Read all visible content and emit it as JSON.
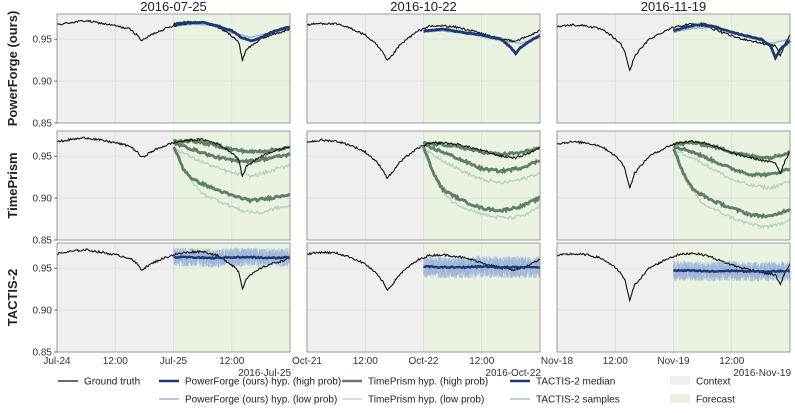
{
  "colors": {
    "ground_truth": "#111111",
    "powerforge_high": "#1b3a73",
    "powerforge_low": "#8fa6cf",
    "timeprism_high": "#5e806b",
    "timeprism_low": "#bcd0c3",
    "tactis_median": "#1b3a73",
    "tactis_samples": "#9db3d8",
    "context": "#efefef",
    "forecast": "#eaf3e1"
  },
  "legend": {
    "ground_truth": "Ground truth",
    "pf_high": "PowerForge (ours) hyp. (high prob)",
    "pf_low": "PowerForge (ours) hyp. (low prob)",
    "tp_high": "TimePrism hyp. (high prob)",
    "tp_low": "TimePrism hyp. (low prob)",
    "tactis_median": "TACTIS-2 median",
    "tactis_samples": "TACTIS-2 samples",
    "context": "Context",
    "forecast": "Forecast"
  },
  "chart_data": {
    "type": "line",
    "columns": [
      "2016-07-25",
      "2016-10-22",
      "2016-11-19"
    ],
    "rows": [
      "PowerForge (ours)",
      "TimePrism",
      "TACTIS-2"
    ],
    "ylim": [
      0.85,
      0.98
    ],
    "yticks": [
      "0.95",
      "0.90",
      "0.85"
    ],
    "yticks_values": [
      0.95,
      0.9,
      0.85
    ],
    "xlim_hours": [
      0,
      48
    ],
    "forecast_start_hour": 24,
    "xtick_hours": [
      0,
      12,
      24,
      36
    ],
    "xtick_labels": [
      [
        "Jul-24",
        "12:00",
        "Jul-25",
        "12:00"
      ],
      [
        "Oct-21",
        "12:00",
        "Oct-22",
        "12:00"
      ],
      [
        "Nov-18",
        "12:00",
        "Nov-19",
        "12:00"
      ]
    ],
    "x_offset_labels": [
      "2016-Jul-25",
      "2016-Oct-22",
      "2016-Nov-19"
    ],
    "ground_truth": [
      [
        [
          0,
          0.967
        ],
        [
          3,
          0.97
        ],
        [
          6,
          0.972
        ],
        [
          9,
          0.969
        ],
        [
          12,
          0.966
        ],
        [
          15,
          0.962
        ],
        [
          16.5,
          0.955
        ],
        [
          17.5,
          0.948
        ],
        [
          18.5,
          0.952
        ],
        [
          20,
          0.957
        ],
        [
          22,
          0.962
        ],
        [
          24,
          0.966
        ],
        [
          27,
          0.969
        ],
        [
          30,
          0.97
        ],
        [
          33,
          0.965
        ],
        [
          35,
          0.958
        ],
        [
          36.5,
          0.952
        ],
        [
          37.5,
          0.945
        ],
        [
          38.2,
          0.925
        ],
        [
          39,
          0.938
        ],
        [
          40,
          0.942
        ],
        [
          42,
          0.95
        ],
        [
          44,
          0.955
        ],
        [
          46,
          0.958
        ],
        [
          48,
          0.962
        ]
      ],
      [
        [
          0,
          0.967
        ],
        [
          3,
          0.969
        ],
        [
          6,
          0.968
        ],
        [
          9,
          0.963
        ],
        [
          12,
          0.955
        ],
        [
          14,
          0.945
        ],
        [
          15.5,
          0.935
        ],
        [
          16.5,
          0.924
        ],
        [
          17.5,
          0.93
        ],
        [
          19,
          0.942
        ],
        [
          21,
          0.952
        ],
        [
          23,
          0.96
        ],
        [
          25,
          0.965
        ],
        [
          28,
          0.966
        ],
        [
          31,
          0.964
        ],
        [
          34,
          0.96
        ],
        [
          37,
          0.955
        ],
        [
          40,
          0.95
        ],
        [
          43,
          0.948
        ],
        [
          45,
          0.952
        ],
        [
          48,
          0.96
        ]
      ],
      [
        [
          0,
          0.965
        ],
        [
          3,
          0.967
        ],
        [
          6,
          0.966
        ],
        [
          9,
          0.962
        ],
        [
          11,
          0.955
        ],
        [
          13,
          0.945
        ],
        [
          14,
          0.935
        ],
        [
          15,
          0.912
        ],
        [
          16,
          0.93
        ],
        [
          17.5,
          0.94
        ],
        [
          19,
          0.95
        ],
        [
          21,
          0.956
        ],
        [
          23,
          0.962
        ],
        [
          25,
          0.966
        ],
        [
          28,
          0.968
        ],
        [
          31,
          0.965
        ],
        [
          34,
          0.958
        ],
        [
          37,
          0.952
        ],
        [
          40,
          0.948
        ],
        [
          43,
          0.944
        ],
        [
          45,
          0.942
        ],
        [
          46,
          0.93
        ],
        [
          47,
          0.945
        ],
        [
          48,
          0.955
        ]
      ]
    ],
    "powerforge_high": [
      [
        [
          24,
          0.968
        ],
        [
          27,
          0.97
        ],
        [
          30,
          0.97
        ],
        [
          33,
          0.966
        ],
        [
          36,
          0.96
        ],
        [
          38,
          0.952
        ],
        [
          40,
          0.948
        ],
        [
          42,
          0.952
        ],
        [
          44,
          0.958
        ],
        [
          48,
          0.965
        ]
      ],
      [
        [
          24,
          0.96
        ],
        [
          28,
          0.962
        ],
        [
          32,
          0.958
        ],
        [
          36,
          0.955
        ],
        [
          40,
          0.95
        ],
        [
          42,
          0.94
        ],
        [
          43,
          0.933
        ],
        [
          44,
          0.94
        ],
        [
          46,
          0.948
        ],
        [
          48,
          0.955
        ]
      ],
      [
        [
          24,
          0.96
        ],
        [
          27,
          0.965
        ],
        [
          30,
          0.968
        ],
        [
          33,
          0.964
        ],
        [
          36,
          0.958
        ],
        [
          39,
          0.954
        ],
        [
          42,
          0.95
        ],
        [
          44,
          0.942
        ],
        [
          45,
          0.928
        ],
        [
          46,
          0.938
        ],
        [
          48,
          0.948
        ]
      ]
    ],
    "powerforge_low": [
      [
        [
          24,
          0.965
        ],
        [
          28,
          0.968
        ],
        [
          32,
          0.966
        ],
        [
          36,
          0.958
        ],
        [
          40,
          0.952
        ],
        [
          44,
          0.958
        ],
        [
          48,
          0.962
        ]
      ],
      [
        [
          24,
          0.958
        ],
        [
          28,
          0.96
        ],
        [
          32,
          0.957
        ],
        [
          36,
          0.953
        ],
        [
          40,
          0.948
        ],
        [
          44,
          0.945
        ],
        [
          48,
          0.952
        ]
      ],
      [
        [
          24,
          0.958
        ],
        [
          28,
          0.963
        ],
        [
          32,
          0.964
        ],
        [
          36,
          0.958
        ],
        [
          40,
          0.951
        ],
        [
          44,
          0.945
        ],
        [
          48,
          0.95
        ]
      ]
    ],
    "timeprism_high": [
      [
        [
          [
            24,
            0.968
          ],
          [
            28,
            0.968
          ],
          [
            32,
            0.964
          ],
          [
            36,
            0.958
          ],
          [
            40,
            0.955
          ],
          [
            44,
            0.957
          ],
          [
            48,
            0.96
          ]
        ],
        [
          [
            24,
            0.966
          ],
          [
            28,
            0.958
          ],
          [
            32,
            0.95
          ],
          [
            36,
            0.945
          ],
          [
            40,
            0.944
          ],
          [
            44,
            0.948
          ],
          [
            48,
            0.952
          ]
        ],
        [
          [
            24,
            0.962
          ],
          [
            26,
            0.935
          ],
          [
            28,
            0.922
          ],
          [
            32,
            0.912
          ],
          [
            36,
            0.903
          ],
          [
            40,
            0.897
          ],
          [
            44,
            0.9
          ],
          [
            48,
            0.905
          ]
        ]
      ],
      [
        [
          [
            24,
            0.965
          ],
          [
            28,
            0.964
          ],
          [
            32,
            0.96
          ],
          [
            36,
            0.955
          ],
          [
            40,
            0.952
          ],
          [
            44,
            0.954
          ],
          [
            48,
            0.96
          ]
        ],
        [
          [
            24,
            0.963
          ],
          [
            28,
            0.955
          ],
          [
            32,
            0.945
          ],
          [
            36,
            0.935
          ],
          [
            40,
            0.932
          ],
          [
            44,
            0.936
          ],
          [
            48,
            0.945
          ]
        ],
        [
          [
            24,
            0.962
          ],
          [
            26,
            0.93
          ],
          [
            28,
            0.91
          ],
          [
            32,
            0.897
          ],
          [
            36,
            0.888
          ],
          [
            40,
            0.885
          ],
          [
            44,
            0.89
          ],
          [
            48,
            0.9
          ]
        ]
      ],
      [
        [
          [
            24,
            0.964
          ],
          [
            28,
            0.966
          ],
          [
            32,
            0.962
          ],
          [
            36,
            0.955
          ],
          [
            40,
            0.95
          ],
          [
            44,
            0.948
          ],
          [
            48,
            0.955
          ]
        ],
        [
          [
            24,
            0.962
          ],
          [
            28,
            0.955
          ],
          [
            32,
            0.945
          ],
          [
            36,
            0.935
          ],
          [
            40,
            0.928
          ],
          [
            44,
            0.928
          ],
          [
            48,
            0.935
          ]
        ],
        [
          [
            24,
            0.96
          ],
          [
            26,
            0.93
          ],
          [
            28,
            0.91
          ],
          [
            32,
            0.897
          ],
          [
            36,
            0.888
          ],
          [
            40,
            0.88
          ],
          [
            44,
            0.878
          ],
          [
            48,
            0.887
          ]
        ]
      ]
    ],
    "timeprism_low": [
      [
        [
          [
            24,
            0.96
          ],
          [
            28,
            0.948
          ],
          [
            32,
            0.938
          ],
          [
            36,
            0.93
          ],
          [
            40,
            0.926
          ],
          [
            44,
            0.932
          ],
          [
            48,
            0.94
          ]
        ],
        [
          [
            24,
            0.958
          ],
          [
            27,
            0.925
          ],
          [
            30,
            0.905
          ],
          [
            34,
            0.895
          ],
          [
            38,
            0.885
          ],
          [
            42,
            0.882
          ],
          [
            45,
            0.888
          ],
          [
            48,
            0.89
          ]
        ]
      ],
      [
        [
          [
            24,
            0.958
          ],
          [
            28,
            0.945
          ],
          [
            32,
            0.932
          ],
          [
            36,
            0.922
          ],
          [
            40,
            0.918
          ],
          [
            44,
            0.922
          ],
          [
            48,
            0.93
          ]
        ],
        [
          [
            24,
            0.957
          ],
          [
            27,
            0.915
          ],
          [
            30,
            0.895
          ],
          [
            34,
            0.885
          ],
          [
            38,
            0.878
          ],
          [
            42,
            0.876
          ],
          [
            45,
            0.88
          ],
          [
            48,
            0.89
          ]
        ]
      ],
      [
        [
          [
            24,
            0.958
          ],
          [
            28,
            0.948
          ],
          [
            32,
            0.935
          ],
          [
            36,
            0.922
          ],
          [
            40,
            0.915
          ],
          [
            44,
            0.912
          ],
          [
            48,
            0.92
          ]
        ],
        [
          [
            24,
            0.956
          ],
          [
            27,
            0.915
          ],
          [
            30,
            0.893
          ],
          [
            34,
            0.882
          ],
          [
            38,
            0.872
          ],
          [
            42,
            0.866
          ],
          [
            45,
            0.867
          ],
          [
            48,
            0.875
          ]
        ]
      ]
    ],
    "tactis_median": [
      [
        [
          24,
          0.963
        ],
        [
          28,
          0.963
        ],
        [
          32,
          0.962
        ],
        [
          36,
          0.963
        ],
        [
          40,
          0.963
        ],
        [
          44,
          0.962
        ],
        [
          48,
          0.963
        ]
      ],
      [
        [
          24,
          0.952
        ],
        [
          28,
          0.951
        ],
        [
          32,
          0.951
        ],
        [
          36,
          0.952
        ],
        [
          40,
          0.951
        ],
        [
          44,
          0.951
        ],
        [
          48,
          0.951
        ]
      ],
      [
        [
          24,
          0.947
        ],
        [
          28,
          0.947
        ],
        [
          32,
          0.946
        ],
        [
          36,
          0.947
        ],
        [
          40,
          0.946
        ],
        [
          44,
          0.946
        ],
        [
          48,
          0.947
        ]
      ]
    ],
    "tactis_band": [
      [
        0.95,
        0.978
      ],
      [
        0.935,
        0.968
      ],
      [
        0.932,
        0.962
      ]
    ]
  }
}
